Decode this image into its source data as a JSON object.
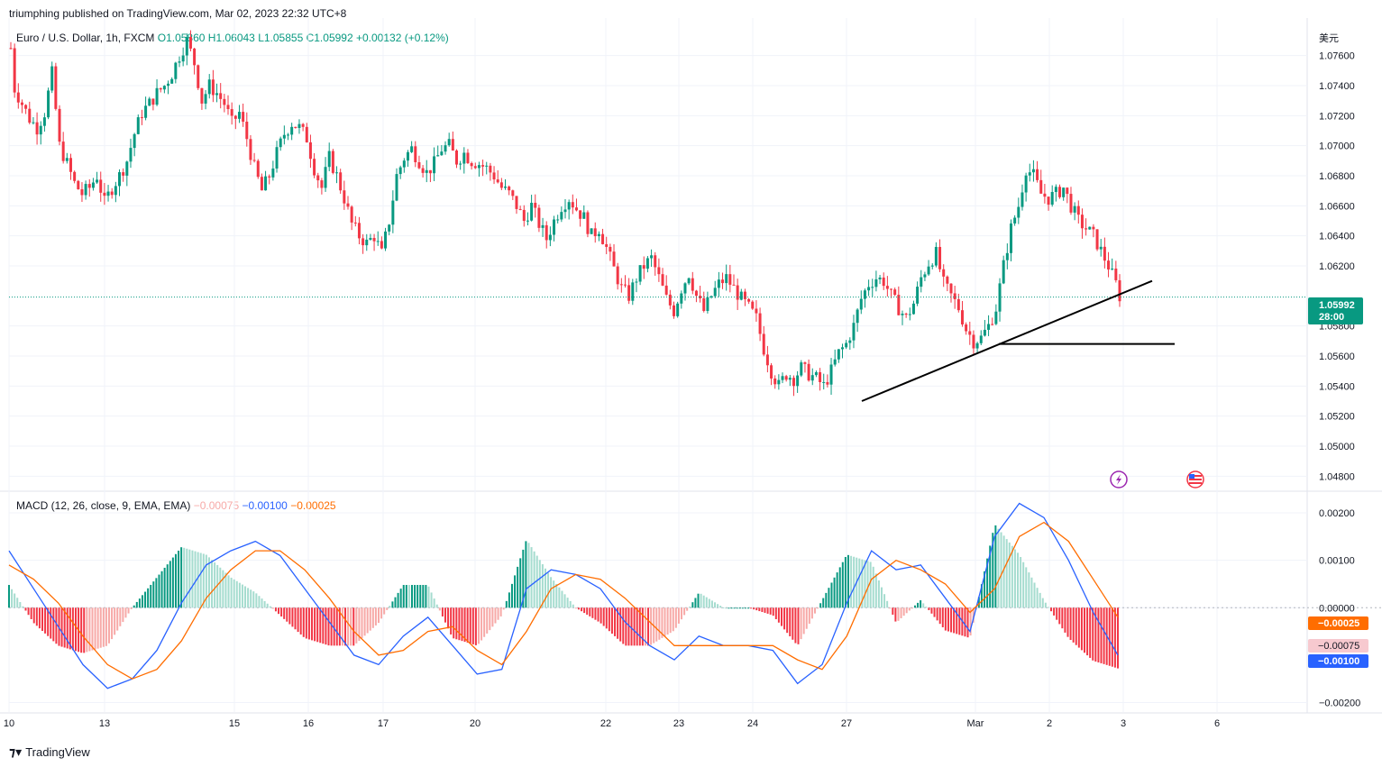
{
  "header": {
    "publisher": "triumphing published on TradingView.com, Mar 02, 2023 22:32 UTC+8"
  },
  "legend": {
    "symbol": "Euro / U.S. Dollar, 1h, FXCM",
    "open": "O1.05860",
    "high": "H1.06043",
    "low": "L1.05855",
    "close": "C1.05992",
    "change": "+0.00132 (+0.12%)"
  },
  "macd_legend": {
    "label": "MACD (12, 26, close, 9, EMA, EMA)",
    "hist": "−0.00075",
    "macd": "−0.00100",
    "signal": "−0.00025"
  },
  "currency_label": "美元",
  "price_badge": {
    "price": "1.05992",
    "countdown": "28:00"
  },
  "macd_badges": {
    "signal": "−0.00025",
    "hist": "−0.00075",
    "macd": "−0.00100"
  },
  "footer": {
    "brand": "TradingView"
  },
  "colors": {
    "up": "#089981",
    "down": "#f23645",
    "macd": "#2962ff",
    "signal": "#ff6d00",
    "hist_light_up": "#a5dccf",
    "hist_light_down": "#f7a9a7"
  },
  "chart_data": [
    {
      "type": "candlestick",
      "title": "Euro / U.S. Dollar, 1h, FXCM",
      "ylim": [
        1.047,
        1.0785
      ],
      "y_ticks": [
        "1.07600",
        "1.07400",
        "1.07200",
        "1.07000",
        "1.06800",
        "1.06600",
        "1.06400",
        "1.06200",
        "1.05800",
        "1.05600",
        "1.05400",
        "1.05200",
        "1.05000",
        "1.04800"
      ],
      "x_ticks": [
        "10",
        "13",
        "15",
        "16",
        "17",
        "20",
        "22",
        "23",
        "24",
        "27",
        "Mar",
        "2",
        "3",
        "6"
      ],
      "price_path": [
        [
          0,
          1.0765
        ],
        [
          1,
          1.0738
        ],
        [
          3,
          1.0728
        ],
        [
          5,
          1.0718
        ],
        [
          7,
          1.0712
        ],
        [
          9,
          1.0722
        ],
        [
          11,
          1.0748
        ],
        [
          13,
          1.07
        ],
        [
          15,
          1.0688
        ],
        [
          17,
          1.0675
        ],
        [
          19,
          1.0668
        ],
        [
          21,
          1.0672
        ],
        [
          23,
          1.068
        ],
        [
          25,
          1.0662
        ],
        [
          27,
          1.0672
        ],
        [
          29,
          1.068
        ],
        [
          31,
          1.069
        ],
        [
          33,
          1.0708
        ],
        [
          35,
          1.0722
        ],
        [
          37,
          1.0728
        ],
        [
          39,
          1.0735
        ],
        [
          41,
          1.074
        ],
        [
          43,
          1.0748
        ],
        [
          45,
          1.076
        ],
        [
          47,
          1.077
        ],
        [
          49,
          1.0755
        ],
        [
          51,
          1.073
        ],
        [
          53,
          1.074
        ],
        [
          55,
          1.0735
        ],
        [
          57,
          1.0728
        ],
        [
          59,
          1.0715
        ],
        [
          61,
          1.0722
        ],
        [
          63,
          1.0705
        ],
        [
          65,
          1.0685
        ],
        [
          67,
          1.067
        ],
        [
          69,
          1.068
        ],
        [
          71,
          1.0695
        ],
        [
          73,
          1.0708
        ],
        [
          75,
          1.0715
        ],
        [
          77,
          1.0712
        ],
        [
          79,
          1.0705
        ],
        [
          81,
          1.0685
        ],
        [
          83,
          1.0672
        ],
        [
          85,
          1.0692
        ],
        [
          87,
          1.068
        ],
        [
          89,
          1.0665
        ],
        [
          91,
          1.0648
        ],
        [
          93,
          1.064
        ],
        [
          95,
          1.0635
        ],
        [
          97,
          1.064
        ],
        [
          99,
          1.0628
        ],
        [
          101,
          1.065
        ],
        [
          103,
          1.068
        ],
        [
          105,
          1.0692
        ],
        [
          107,
          1.0698
        ],
        [
          109,
          1.069
        ],
        [
          111,
          1.0682
        ],
        [
          113,
          1.0688
        ],
        [
          115,
          1.0698
        ],
        [
          117,
          1.07
        ],
        [
          119,
          1.069
        ],
        [
          121,
          1.0695
        ],
        [
          123,
          1.069
        ],
        [
          125,
          1.0688
        ],
        [
          127,
          1.0685
        ],
        [
          129,
          1.068
        ],
        [
          131,
          1.0672
        ],
        [
          133,
          1.0668
        ],
        [
          135,
          1.066
        ],
        [
          137,
          1.065
        ],
        [
          139,
          1.066
        ],
        [
          141,
          1.0648
        ],
        [
          143,
          1.0638
        ],
        [
          145,
          1.065
        ],
        [
          147,
          1.066
        ],
        [
          149,
          1.0665
        ],
        [
          151,
          1.0658
        ],
        [
          153,
          1.0652
        ],
        [
          155,
          1.064
        ],
        [
          157,
          1.0645
        ],
        [
          159,
          1.0632
        ],
        [
          161,
          1.0618
        ],
        [
          163,
          1.0605
        ],
        [
          165,
          1.06
        ],
        [
          167,
          1.0612
        ],
        [
          169,
          1.062
        ],
        [
          171,
          1.0625
        ],
        [
          173,
          1.0612
        ],
        [
          175,
          1.0598
        ],
        [
          177,
          1.059
        ],
        [
          179,
          1.0605
        ],
        [
          181,
          1.0615
        ],
        [
          183,
          1.06
        ],
        [
          185,
          1.059
        ],
        [
          187,
          1.06
        ],
        [
          189,
          1.0608
        ],
        [
          191,
          1.0612
        ],
        [
          193,
          1.0605
        ],
        [
          195,
          1.0598
        ],
        [
          197,
          1.0592
        ],
        [
          199,
          1.0585
        ],
        [
          201,
          1.0565
        ],
        [
          203,
          1.055
        ],
        [
          205,
          1.054
        ],
        [
          207,
          1.0548
        ],
        [
          209,
          1.0545
        ],
        [
          211,
          1.0552
        ],
        [
          213,
          1.0548
        ],
        [
          215,
          1.0545
        ],
        [
          217,
          1.054
        ],
        [
          219,
          1.055
        ],
        [
          221,
          1.0562
        ],
        [
          223,
          1.0568
        ],
        [
          225,
          1.058
        ],
        [
          227,
          1.0598
        ],
        [
          229,
          1.0608
        ],
        [
          231,
          1.0612
        ],
        [
          233,
          1.061
        ],
        [
          235,
          1.06
        ],
        [
          237,
          1.0592
        ],
        [
          239,
          1.0585
        ],
        [
          241,
          1.0595
        ],
        [
          243,
          1.0612
        ],
        [
          245,
          1.0622
        ],
        [
          247,
          1.0628
        ],
        [
          249,
          1.0608
        ],
        [
          251,
          1.06
        ],
        [
          253,
          1.0592
        ],
        [
          255,
          1.0578
        ],
        [
          257,
          1.057
        ],
        [
          259,
          1.0572
        ],
        [
          261,
          1.058
        ],
        [
          263,
          1.0592
        ],
        [
          265,
          1.062
        ],
        [
          267,
          1.0645
        ],
        [
          269,
          1.066
        ],
        [
          271,
          1.0685
        ],
        [
          273,
          1.068
        ],
        [
          275,
          1.0668
        ],
        [
          277,
          1.0665
        ],
        [
          279,
          1.0668
        ],
        [
          281,
          1.0672
        ],
        [
          283,
          1.066
        ],
        [
          285,
          1.065
        ],
        [
          287,
          1.0645
        ],
        [
          289,
          1.064
        ],
        [
          291,
          1.063
        ],
        [
          293,
          1.062
        ],
        [
          295,
          1.0608
        ],
        [
          296,
          1.06
        ]
      ],
      "trendline": {
        "from": [
          1.053
        ],
        "to": [
          1.061
        ]
      },
      "support_level": 1.0568,
      "last_price": 1.05992
    },
    {
      "type": "line+histogram",
      "title": "MACD (12, 26, close, 9, EMA, EMA)",
      "ylim": [
        -0.0022,
        0.0024
      ],
      "y_ticks": [
        "0.00200",
        "0.00100",
        "0.00000",
        "−0.00200"
      ],
      "series": [
        {
          "name": "MACD",
          "values": [
            0.0012,
            0.0004,
            -0.0004,
            -0.0012,
            -0.0017,
            -0.0015,
            -0.0009,
            0.0001,
            0.0009,
            0.0012,
            0.0014,
            0.0011,
            0.0004,
            -0.0003,
            -0.001,
            -0.0012,
            -0.0006,
            -0.0002,
            -0.0008,
            -0.0014,
            -0.0013,
            0.0004,
            0.0008,
            0.0007,
            0.0004,
            -0.0003,
            -0.0008,
            -0.0011,
            -0.0006,
            -0.0008,
            -0.0008,
            -0.0009,
            -0.0016,
            -0.0012,
            0.0001,
            0.0012,
            0.0008,
            0.0009,
            0.0002,
            -0.0005,
            0.0015,
            0.0022,
            0.0019,
            0.001,
            -0.0001,
            -0.001
          ]
        },
        {
          "name": "Signal",
          "values": [
            0.0009,
            0.0006,
            0.0001,
            -0.0006,
            -0.0012,
            -0.0015,
            -0.0013,
            -0.0007,
            0.0002,
            0.0008,
            0.0012,
            0.0012,
            0.0008,
            0.0002,
            -0.0005,
            -0.001,
            -0.0009,
            -0.0005,
            -0.0004,
            -0.0009,
            -0.0012,
            -0.0005,
            0.0004,
            0.0007,
            0.0006,
            0.0002,
            -0.0003,
            -0.0008,
            -0.0008,
            -0.0008,
            -0.0008,
            -0.0008,
            -0.0011,
            -0.0013,
            -0.0006,
            0.0006,
            0.001,
            0.0008,
            0.0005,
            -0.0001,
            0.0004,
            0.0015,
            0.0018,
            0.0014,
            0.0006,
            -0.0002
          ]
        }
      ]
    }
  ]
}
